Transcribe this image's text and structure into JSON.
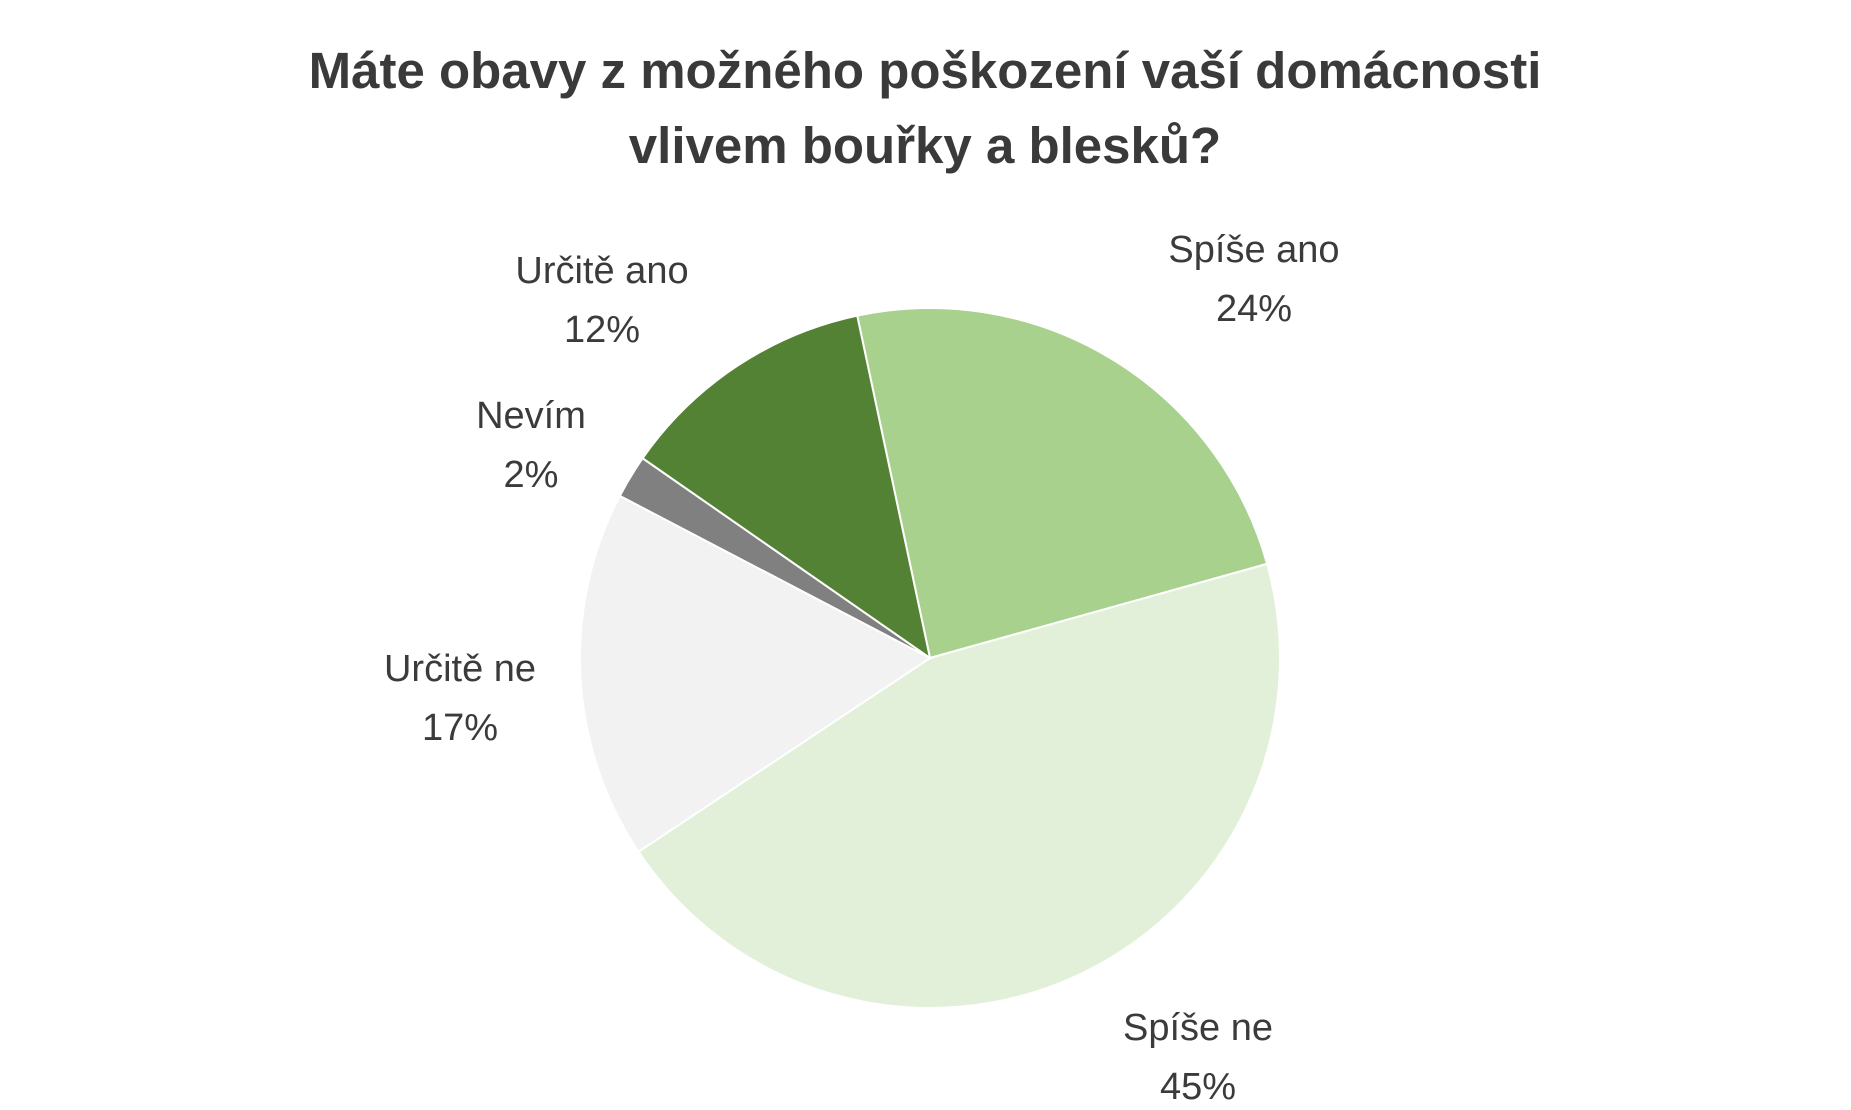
{
  "chart_data": {
    "type": "pie",
    "title_lines": [
      "Máte obavy z možného poškození vaší domácnosti",
      "vlivem bouřky a blesků?"
    ],
    "start_angle_deg": -12,
    "direction": "clockwise",
    "slices": [
      {
        "label": "Spíše ano",
        "value": 24,
        "value_label": "24%",
        "color": "#a9d18e"
      },
      {
        "label": "Spíše ne",
        "value": 45,
        "value_label": "45%",
        "color": "#e2f0d9"
      },
      {
        "label": "Určitě ne",
        "value": 17,
        "value_label": "17%",
        "color": "#f2f2f2"
      },
      {
        "label": "Nevím",
        "value": 2,
        "value_label": "2%",
        "color": "#808080"
      },
      {
        "label": "Určitě ano",
        "value": 12,
        "value_label": "12%",
        "color": "#548235"
      }
    ],
    "legend": "none"
  }
}
